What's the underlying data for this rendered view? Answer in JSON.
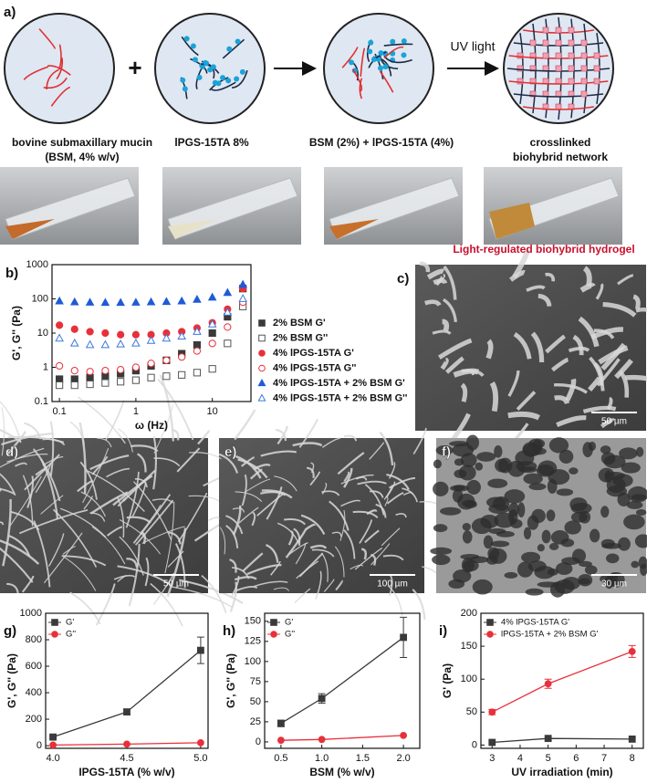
{
  "panel_a": {
    "label": "a)",
    "plus": "+",
    "arrow_label": "UV light",
    "captions": [
      [
        "bovine submaxillary mucin",
        "(BSM, 4% w/v)"
      ],
      [
        "lPGS-15TA 8%"
      ],
      [
        "BSM (2%) + lPGS-15TA (4%)"
      ],
      [
        "crosslinked",
        "biohybrid network"
      ]
    ],
    "photo_caption": "Light-regulated biohybrid hydrogel"
  },
  "sem_images": [
    {
      "label": "c)",
      "scale_bar": "50 µm"
    },
    {
      "label": "d)",
      "scale_bar": "50 µm"
    },
    {
      "label": "e)",
      "scale_bar": "100 µm"
    },
    {
      "label": "f)",
      "scale_bar": "30 µm"
    }
  ],
  "chart_data": [
    {
      "type": "scatter",
      "panel_label": "b)",
      "xscale": "log",
      "yscale": "log",
      "x_label": "ω (Hz)",
      "y_label": "G', G'' (Pa)",
      "xlim": [
        0.08,
        32
      ],
      "ylim": [
        0.1,
        1000
      ],
      "xticks": [
        0.1,
        1,
        10
      ],
      "yticks": [
        0.1,
        1,
        10,
        100,
        1000
      ],
      "legend": "right",
      "x": [
        0.1,
        0.158,
        0.251,
        0.398,
        0.631,
        1,
        1.58,
        2.51,
        3.98,
        6.31,
        10,
        15.8,
        25.1
      ],
      "series": [
        {
          "name": "2% BSM G'",
          "color": "#3a3a3a",
          "marker": "square",
          "filled": true,
          "values": [
            0.45,
            0.45,
            0.5,
            0.55,
            0.65,
            0.8,
            1.1,
            1.6,
            2.5,
            4.5,
            10,
            30,
            200
          ]
        },
        {
          "name": "2% BSM G''",
          "color": "#555555",
          "marker": "square",
          "filled": false,
          "values": [
            0.3,
            0.3,
            0.32,
            0.35,
            0.38,
            0.42,
            0.5,
            0.55,
            0.6,
            0.7,
            0.9,
            5,
            60
          ]
        },
        {
          "name": "4% lPGS-15TA G'",
          "color": "#e8303a",
          "marker": "circle",
          "filled": true,
          "values": [
            17,
            13,
            11,
            10,
            9,
            9,
            9,
            10,
            11,
            14,
            20,
            50,
            200
          ]
        },
        {
          "name": "4% lPGS-15TA G''",
          "color": "#e8303a",
          "marker": "circle",
          "filled": false,
          "values": [
            1.1,
            0.8,
            0.75,
            0.8,
            0.85,
            1,
            1.3,
            1.6,
            2,
            3,
            5,
            15,
            80
          ]
        },
        {
          "name": "4% lPGS-15TA + 2% BSM G'",
          "color": "#1f5bd6",
          "marker": "triangle",
          "filled": true,
          "values": [
            85,
            80,
            78,
            77,
            77,
            78,
            80,
            82,
            85,
            95,
            110,
            150,
            260
          ]
        },
        {
          "name": "4% lPGS-15TA + 2% BSM G''",
          "color": "#3a78e0",
          "marker": "triangle",
          "filled": false,
          "values": [
            7,
            5,
            4.5,
            4.5,
            4.7,
            5,
            6,
            7,
            8,
            11,
            18,
            40,
            100
          ]
        }
      ]
    },
    {
      "type": "line",
      "panel_label": "g)",
      "x_label": "IPGS-15TA (% w/v)",
      "y_label": "G', G'' (Pa)",
      "xlim": [
        3.95,
        5.05
      ],
      "ylim": [
        -20,
        1000
      ],
      "xticks": [
        {
          "value": 4,
          "label": "4.0"
        },
        {
          "value": 4.5,
          "label": "4.5"
        },
        {
          "value": 5,
          "label": "5.0"
        }
      ],
      "yticks": [
        0,
        200,
        400,
        600,
        800,
        1000
      ],
      "legend": "upper left",
      "x": [
        4,
        4.5,
        5
      ],
      "series": [
        {
          "name": "G'",
          "color": "#3a3a3a",
          "marker": "square",
          "filled": true,
          "values": [
            65,
            255,
            720
          ],
          "errors": [
            10,
            20,
            100
          ]
        },
        {
          "name": "G''",
          "color": "#e8303a",
          "marker": "circle",
          "filled": true,
          "values": [
            5,
            12,
            22
          ]
        }
      ]
    },
    {
      "type": "line",
      "panel_label": "h)",
      "x_label": "BSM (% w/v)",
      "y_label": "G', G'' (Pa)",
      "xlim": [
        0.3,
        2.2
      ],
      "ylim": [
        -8,
        160
      ],
      "xticks": [
        0.5,
        {
          "value": 1,
          "label": "1.0"
        },
        1.5,
        {
          "value": 2,
          "label": "2.0"
        }
      ],
      "yticks": [
        0,
        25,
        50,
        75,
        100,
        125,
        150
      ],
      "legend": "upper left",
      "x": [
        0.5,
        1,
        2
      ],
      "series": [
        {
          "name": "G'",
          "color": "#3a3a3a",
          "marker": "square",
          "filled": true,
          "values": [
            23,
            54,
            130
          ],
          "errors": [
            4,
            6,
            25
          ]
        },
        {
          "name": "G''",
          "color": "#e8303a",
          "marker": "circle",
          "filled": true,
          "values": [
            2,
            3,
            8
          ]
        }
      ]
    },
    {
      "type": "line",
      "panel_label": "i)",
      "x_label": "UV irradiation (min)",
      "y_label": "G' (Pa)",
      "xlim": [
        2.6,
        8.4
      ],
      "ylim": [
        -5,
        200
      ],
      "xticks": [
        3,
        4,
        5,
        6,
        7,
        8
      ],
      "yticks": [
        0,
        50,
        100,
        150,
        200
      ],
      "legend": "upper left",
      "x": [
        3,
        5,
        8
      ],
      "series": [
        {
          "name": "4% lPGS-15TA G'",
          "color": "#3a3a3a",
          "marker": "square",
          "filled": true,
          "values": [
            4,
            10,
            9
          ]
        },
        {
          "name": "lPGS-15TA + 2% BSM G'",
          "color": "#e8303a",
          "marker": "circle",
          "filled": true,
          "values": [
            50,
            93,
            142
          ],
          "errors": [
            4,
            7,
            9
          ]
        }
      ]
    }
  ]
}
